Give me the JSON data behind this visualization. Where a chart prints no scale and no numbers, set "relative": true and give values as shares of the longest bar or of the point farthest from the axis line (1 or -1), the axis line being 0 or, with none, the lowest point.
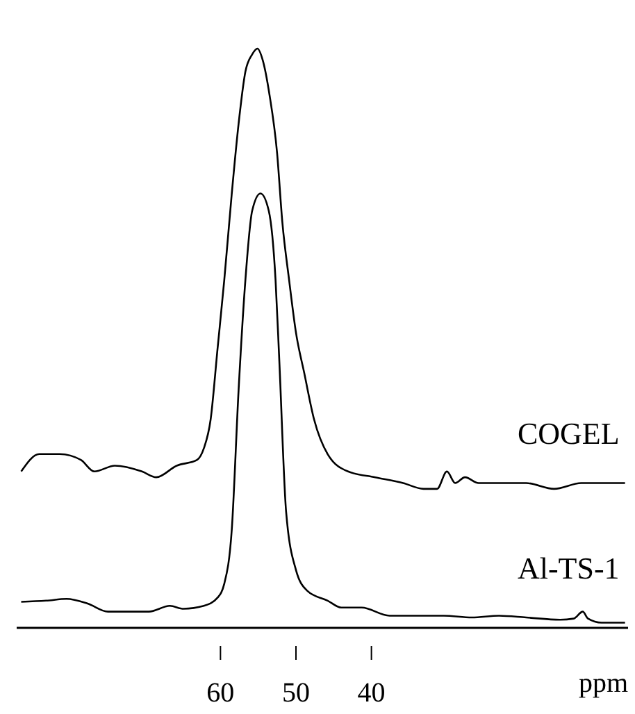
{
  "chart_data": {
    "type": "line",
    "relative": true,
    "xlabel": "ppm",
    "xlim": [
      87,
      6
    ],
    "xticks": [
      60,
      50,
      40
    ],
    "legend": false,
    "marker": "none",
    "line_style": "solid",
    "series": [
      {
        "name": "COGEL",
        "color": "#000000",
        "x": [
          86.4,
          84.0,
          81.3,
          78.5,
          76.7,
          74.0,
          70.4,
          68.5,
          65.8,
          63.1,
          62.2,
          61.3,
          60.4,
          59.5,
          58.5,
          57.6,
          56.7,
          55.8,
          55.1,
          54.4,
          53.5,
          52.5,
          51.8,
          50.9,
          50.0,
          48.9,
          47.6,
          45.8,
          43.1,
          39.5,
          35.8,
          33.1,
          31.3,
          30.0,
          28.9,
          27.6,
          25.8,
          23.1,
          19.5,
          15.8,
          12.2,
          8.5,
          6.4
        ],
        "values": [
          0.27,
          0.3,
          0.3,
          0.29,
          0.27,
          0.28,
          0.27,
          0.26,
          0.28,
          0.29,
          0.31,
          0.36,
          0.48,
          0.6,
          0.75,
          0.87,
          0.96,
          0.99,
          1,
          0.98,
          0.92,
          0.82,
          0.7,
          0.6,
          0.51,
          0.44,
          0.36,
          0.3,
          0.27,
          0.26,
          0.25,
          0.24,
          0.24,
          0.27,
          0.25,
          0.26,
          0.25,
          0.25,
          0.25,
          0.24,
          0.25,
          0.25,
          0.25
        ]
      },
      {
        "name": "Al-TS-1",
        "color": "#000000",
        "x": [
          86.4,
          83.1,
          80.4,
          77.6,
          74.9,
          72.2,
          69.5,
          66.7,
          64.9,
          62.2,
          60.4,
          59.5,
          58.5,
          57.6,
          56.7,
          55.8,
          54.7,
          53.6,
          52.7,
          52.2,
          51.3,
          50.0,
          48.5,
          45.8,
          44.0,
          41.3,
          37.6,
          34.0,
          30.4,
          26.7,
          23.1,
          19.5,
          15.0,
          13.2,
          12.0,
          11.3,
          9.5,
          6.4
        ],
        "values": [
          0.045,
          0.047,
          0.05,
          0.042,
          0.028,
          0.028,
          0.028,
          0.038,
          0.033,
          0.038,
          0.052,
          0.076,
          0.17,
          0.41,
          0.6,
          0.72,
          0.75,
          0.72,
          0.6,
          0.46,
          0.2,
          0.1,
          0.064,
          0.047,
          0.035,
          0.035,
          0.021,
          0.021,
          0.021,
          0.018,
          0.021,
          0.018,
          0.014,
          0.016,
          0.028,
          0.016,
          0.009,
          0.009
        ]
      }
    ]
  }
}
